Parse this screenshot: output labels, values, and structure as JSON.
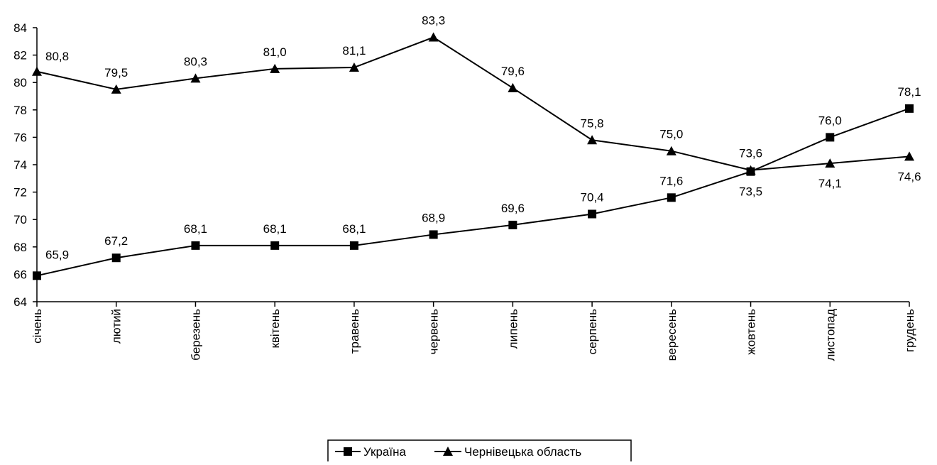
{
  "chart_data": {
    "type": "line",
    "title": "",
    "xlabel": "",
    "ylabel": "",
    "ylim": [
      64,
      84
    ],
    "ytick_step": 2,
    "grid": false,
    "legend_position": "bottom-center",
    "categories": [
      "січень",
      "лютий",
      "березень",
      "квітень",
      "травень",
      "червень",
      "липень",
      "серпень",
      "вересень",
      "жовтень",
      "листопад",
      "грудень"
    ],
    "series": [
      {
        "name": "Україна",
        "marker": "square",
        "color": "#000000",
        "values": [
          65.9,
          67.2,
          68.1,
          68.1,
          68.1,
          68.9,
          69.6,
          70.4,
          71.6,
          73.5,
          76.0,
          78.1
        ],
        "labels": [
          "65,9",
          "67,2",
          "68,1",
          "68,1",
          "68,1",
          "68,9",
          "69,6",
          "70,4",
          "71,6",
          "73,5",
          "76,0",
          "78,1"
        ]
      },
      {
        "name": "Чернівецька область",
        "marker": "triangle",
        "color": "#000000",
        "values": [
          80.8,
          79.5,
          80.3,
          81.0,
          81.1,
          83.3,
          79.6,
          75.8,
          75.0,
          73.6,
          74.1,
          74.6
        ],
        "labels": [
          "80,8",
          "79,5",
          "80,3",
          "81,0",
          "81,1",
          "83,3",
          "79,6",
          "75,8",
          "75,0",
          "73,6",
          "74,1",
          "74,6"
        ]
      }
    ]
  }
}
